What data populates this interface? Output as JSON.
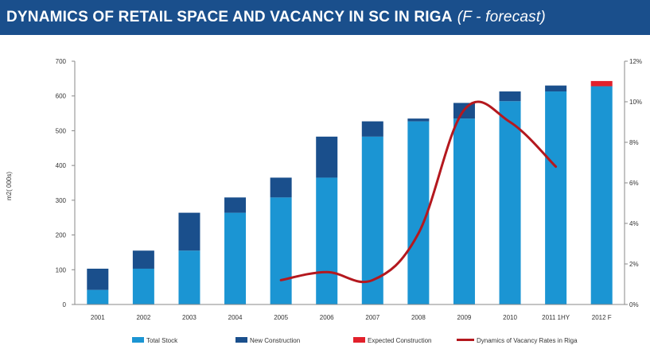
{
  "banner": {
    "title": "DYNAMICS OF RETAIL SPACE AND VACANCY IN SC IN RIGA",
    "subtitle": "(F - forecast)"
  },
  "colors": {
    "banner_bg": "#1a4f8c",
    "total_stock": "#1b95d3",
    "new_construction": "#1a4f8c",
    "expected_construction": "#e2202b",
    "vacancy_line": "#b4181e"
  },
  "chart_data": {
    "type": "bar",
    "title": "DYNAMICS OF RETAIL SPACE AND VACANCY IN SC IN RIGA",
    "subtitle": "(F - forecast)",
    "ylabel": "m2( 000s)",
    "ylim": [
      0,
      700
    ],
    "yticks": [
      "0",
      "100",
      "200",
      "300",
      "400",
      "500",
      "600",
      "700"
    ],
    "y2lim": [
      0,
      12
    ],
    "y2ticks": [
      "0%",
      "2%",
      "4%",
      "6%",
      "8%",
      "10%",
      "12%"
    ],
    "grid": false,
    "legend_position": "bottom",
    "categories": [
      "2001",
      "2002",
      "2003",
      "2004",
      "2005",
      "2006",
      "2007",
      "2008",
      "2009",
      "2010",
      "2011 1HY",
      "2012 F"
    ],
    "series": [
      {
        "name": "Total Stock",
        "type": "bar",
        "stack": "main",
        "values": [
          42,
          103,
          155,
          264,
          308,
          365,
          483,
          527,
          535,
          585,
          613,
          628
        ]
      },
      {
        "name": "New Construction",
        "type": "bar",
        "stack": "main",
        "values": [
          61,
          52,
          109,
          44,
          57,
          118,
          44,
          8,
          45,
          28,
          17,
          0
        ]
      },
      {
        "name": "Expected Construction",
        "type": "bar",
        "stack": "main",
        "values": [
          0,
          0,
          0,
          0,
          0,
          0,
          0,
          0,
          0,
          0,
          0,
          15
        ]
      },
      {
        "name": "Dynamics of Vacancy Rates in Riga",
        "type": "line",
        "axis": "right",
        "values": [
          null,
          null,
          null,
          null,
          1.2,
          1.6,
          1.2,
          3.5,
          9.6,
          9.0,
          6.8,
          null
        ]
      }
    ]
  }
}
